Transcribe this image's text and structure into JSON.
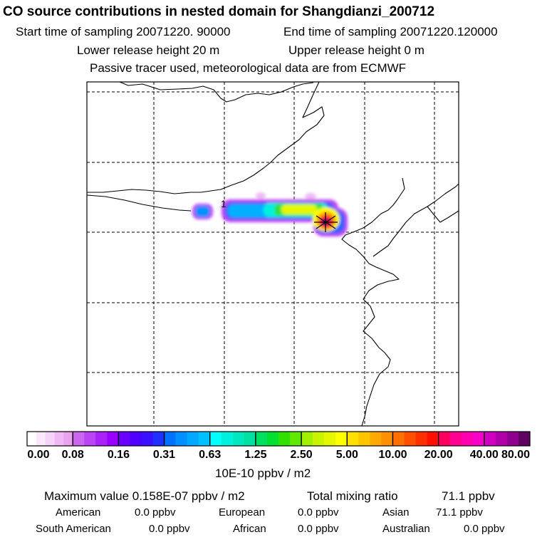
{
  "header": {
    "title": "CO  source contributions in nested domain for Shangdianzi_200712",
    "start_label": "Start time of sampling 20071220. 90000",
    "end_label": "End time of sampling 20071220.120000",
    "lower_label": "Lower release height   20 m",
    "upper_label": "Upper release height    0 m",
    "tracer_label": "Passive tracer used, meteorological data are from ECMWF"
  },
  "chart_data": {
    "type": "heatmap",
    "title": "CO  source contributions in nested domain for Shangdianzi_200712",
    "grid": true,
    "station_marker": "1",
    "colorbar": {
      "tick_labels": [
        "0.00",
        "0.08",
        "0.16",
        "0.31",
        "0.63",
        "1.25",
        "2.50",
        "5.00",
        "10.00",
        "20.00",
        "40.00",
        "80.00"
      ],
      "unit_label": "10E-10 ppbv / m2",
      "groups": [
        [
          "#ffffff",
          "#fbe8fb",
          "#f5d2f7",
          "#efbaf3",
          "#e9a2ef"
        ],
        [
          "#cc66f0",
          "#bb44f4",
          "#aa22f8",
          "#9900ff"
        ],
        [
          "#6a00ff",
          "#5000ff",
          "#3a10ff",
          "#2030ff"
        ],
        [
          "#0070ff",
          "#0090ff",
          "#00a8ff",
          "#00c0ff"
        ],
        [
          "#00ffff",
          "#00f0e0",
          "#00e8c0",
          "#00e0a0"
        ],
        [
          "#00e060",
          "#00e030",
          "#30e000",
          "#60e800"
        ],
        [
          "#a0f000",
          "#c8f400",
          "#e6f800",
          "#ffff00"
        ],
        [
          "#ffe000",
          "#ffc400",
          "#ffa800",
          "#ff9000"
        ],
        [
          "#ff7000",
          "#ff5000",
          "#ff3000",
          "#ff1000"
        ],
        [
          "#ff0060",
          "#ff0090",
          "#ff00b0",
          "#f800c8"
        ],
        [
          "#d000c0",
          "#b000a8",
          "#900090",
          "#600060"
        ]
      ]
    },
    "stats": {
      "maximum_value": "Maximum value  0.158E-07 ppbv / m2",
      "total_mixing_ratio": "Total mixing ratio",
      "total_value": "71.1 ppbv"
    },
    "regions": [
      {
        "name": "American",
        "value": "0.0 ppbv"
      },
      {
        "name": "European",
        "value": "0.0 ppbv"
      },
      {
        "name": "Asian",
        "value": "71.1 ppbv"
      },
      {
        "name": "South American",
        "value": "0.0 ppbv"
      },
      {
        "name": "African",
        "value": "0.0 ppbv"
      },
      {
        "name": "Australian",
        "value": "0.0 ppbv"
      }
    ]
  }
}
